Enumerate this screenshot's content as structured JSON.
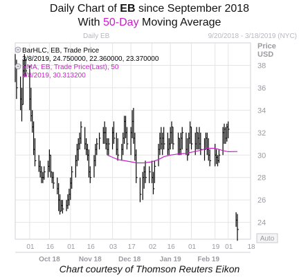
{
  "title": {
    "prefix": "Daily Chart of ",
    "ticker": "EB",
    "suffix": " since September 2018",
    "line2_prefix": "With ",
    "line2_highlight": "50-Day",
    "line2_suffix": " Moving Average"
  },
  "caption": "Chart courtesy of Thomson Reuters Eikon",
  "colors": {
    "price_bars": "#000000",
    "sma": "#c81ec8",
    "grid": "#e4e4e4",
    "axis_text": "#9a9aa2"
  },
  "chart_data": {
    "type": "ohlc_with_line",
    "watermark": "Daily EB",
    "date_range_label": "9/20/2018 - 3/18/2019 (NYC)",
    "ylabel": "Price\nUSD",
    "yticks": [
      24,
      26,
      28,
      30,
      32,
      34,
      36,
      38
    ],
    "ylim": [
      22.5,
      40
    ],
    "auto_label": "Auto",
    "legend": [
      {
        "icon": "zoom-icon",
        "text": "BarHLC, EB, Trade Price"
      },
      {
        "icon": "",
        "text": "3/8/2019, 24.750000, 22.360000, 23.370000"
      },
      {
        "icon": "zoom-icon",
        "text": "SMA, EB, Trade Price(Last),  50"
      },
      {
        "icon": "",
        "text": "3/8/2019, 30.313200"
      }
    ],
    "x_day_ticks": [
      {
        "label": "01",
        "date": "2018-10-01"
      },
      {
        "label": "16",
        "date": "2018-10-16"
      },
      {
        "label": "01",
        "date": "2018-11-01"
      },
      {
        "label": "16",
        "date": "2018-11-16"
      },
      {
        "label": "03",
        "date": "2018-12-03"
      },
      {
        "label": "17",
        "date": "2018-12-17"
      },
      {
        "label": "02",
        "date": "2019-01-02"
      },
      {
        "label": "16",
        "date": "2019-01-16"
      },
      {
        "label": "01",
        "date": "2019-02-01"
      },
      {
        "label": "19",
        "date": "2019-02-19"
      },
      {
        "label": "01",
        "date": "2019-03-01"
      },
      {
        "label": "18",
        "date": "2019-03-18"
      }
    ],
    "x_month_labels": [
      {
        "label": "Oct 18",
        "date": "2018-10-16"
      },
      {
        "label": "Nov 18",
        "date": "2018-11-16"
      },
      {
        "label": "Dec 18",
        "date": "2018-12-16"
      },
      {
        "label": "Jan 19",
        "date": "2019-01-16"
      },
      {
        "label": "Feb 19",
        "date": "2019-02-14"
      }
    ],
    "x_start": "2018-09-20",
    "x_end": "2019-03-18",
    "bars": [
      {
        "date": "2018-09-20",
        "high": 39.0,
        "low": 36.5,
        "close": 38.0
      },
      {
        "date": "2018-09-21",
        "high": 38.5,
        "low": 35.0,
        "close": 36.0
      },
      {
        "date": "2018-09-24",
        "high": 37.0,
        "low": 34.0,
        "close": 35.0
      },
      {
        "date": "2018-09-25",
        "high": 36.0,
        "low": 33.0,
        "close": 34.5
      },
      {
        "date": "2018-09-26",
        "high": 38.5,
        "low": 34.5,
        "close": 37.5
      },
      {
        "date": "2018-09-27",
        "high": 39.0,
        "low": 37.0,
        "close": 38.0
      },
      {
        "date": "2018-09-28",
        "high": 38.5,
        "low": 37.0,
        "close": 37.5
      },
      {
        "date": "2018-10-01",
        "high": 38.0,
        "low": 34.0,
        "close": 35.0
      },
      {
        "date": "2018-10-02",
        "high": 36.0,
        "low": 33.0,
        "close": 33.5
      },
      {
        "date": "2018-10-03",
        "high": 34.0,
        "low": 32.0,
        "close": 32.5
      },
      {
        "date": "2018-10-04",
        "high": 33.0,
        "low": 30.0,
        "close": 30.5
      },
      {
        "date": "2018-10-05",
        "high": 31.5,
        "low": 29.0,
        "close": 29.5
      },
      {
        "date": "2018-10-08",
        "high": 30.0,
        "low": 28.5,
        "close": 29.0
      },
      {
        "date": "2018-10-09",
        "high": 29.5,
        "low": 28.0,
        "close": 28.5
      },
      {
        "date": "2018-10-10",
        "high": 29.0,
        "low": 27.5,
        "close": 28.0
      },
      {
        "date": "2018-10-11",
        "high": 28.5,
        "low": 27.5,
        "close": 28.0
      },
      {
        "date": "2018-10-12",
        "high": 29.0,
        "low": 27.8,
        "close": 28.5
      },
      {
        "date": "2018-10-15",
        "high": 29.5,
        "low": 28.0,
        "close": 29.0
      },
      {
        "date": "2018-10-16",
        "high": 30.5,
        "low": 28.5,
        "close": 30.0
      },
      {
        "date": "2018-10-17",
        "high": 30.0,
        "low": 28.0,
        "close": 28.5
      },
      {
        "date": "2018-10-18",
        "high": 28.5,
        "low": 27.5,
        "close": 28.0
      },
      {
        "date": "2018-10-19",
        "high": 28.5,
        "low": 27.0,
        "close": 27.5
      },
      {
        "date": "2018-10-22",
        "high": 28.0,
        "low": 26.5,
        "close": 27.0
      },
      {
        "date": "2018-10-23",
        "high": 27.5,
        "low": 25.0,
        "close": 26.0
      },
      {
        "date": "2018-10-24",
        "high": 26.5,
        "low": 24.7,
        "close": 25.0
      },
      {
        "date": "2018-10-25",
        "high": 26.0,
        "low": 25.0,
        "close": 25.5
      },
      {
        "date": "2018-10-26",
        "high": 26.0,
        "low": 24.8,
        "close": 25.2
      },
      {
        "date": "2018-10-29",
        "high": 26.0,
        "low": 25.0,
        "close": 25.5
      },
      {
        "date": "2018-10-30",
        "high": 26.5,
        "low": 25.2,
        "close": 26.0
      },
      {
        "date": "2018-10-31",
        "high": 27.0,
        "low": 25.5,
        "close": 26.5
      },
      {
        "date": "2018-11-01",
        "high": 28.0,
        "low": 26.0,
        "close": 27.5
      },
      {
        "date": "2018-11-02",
        "high": 29.0,
        "low": 27.0,
        "close": 28.5
      },
      {
        "date": "2018-11-05",
        "high": 30.0,
        "low": 28.0,
        "close": 29.5
      },
      {
        "date": "2018-11-06",
        "high": 31.0,
        "low": 29.0,
        "close": 30.5
      },
      {
        "date": "2018-11-07",
        "high": 31.5,
        "low": 29.5,
        "close": 31.0
      },
      {
        "date": "2018-11-08",
        "high": 32.0,
        "low": 30.5,
        "close": 31.5
      },
      {
        "date": "2018-11-09",
        "high": 33.0,
        "low": 31.0,
        "close": 32.5
      },
      {
        "date": "2018-11-12",
        "high": 32.5,
        "low": 30.5,
        "close": 31.0
      },
      {
        "date": "2018-11-13",
        "high": 31.5,
        "low": 30.0,
        "close": 30.5
      },
      {
        "date": "2018-11-14",
        "high": 31.0,
        "low": 29.5,
        "close": 30.0
      },
      {
        "date": "2018-11-15",
        "high": 30.5,
        "low": 28.0,
        "close": 28.5
      },
      {
        "date": "2018-11-16",
        "high": 29.0,
        "low": 27.5,
        "close": 28.0
      },
      {
        "date": "2018-11-19",
        "high": 30.0,
        "low": 28.0,
        "close": 29.5
      },
      {
        "date": "2018-11-20",
        "high": 31.0,
        "low": 29.0,
        "close": 30.5
      },
      {
        "date": "2018-11-21",
        "high": 31.5,
        "low": 30.0,
        "close": 31.0
      },
      {
        "date": "2018-11-23",
        "high": 32.0,
        "low": 30.5,
        "close": 31.5
      },
      {
        "date": "2018-11-26",
        "high": 32.5,
        "low": 31.0,
        "close": 32.0
      },
      {
        "date": "2018-11-27",
        "high": 33.0,
        "low": 31.0,
        "close": 32.0
      },
      {
        "date": "2018-11-28",
        "high": 32.5,
        "low": 30.5,
        "close": 31.0
      },
      {
        "date": "2018-11-29",
        "high": 31.5,
        "low": 30.0,
        "close": 30.5
      },
      {
        "date": "2018-11-30",
        "high": 31.5,
        "low": 30.0,
        "close": 31.0
      },
      {
        "date": "2018-12-03",
        "high": 32.5,
        "low": 30.5,
        "close": 32.0
      },
      {
        "date": "2018-12-04",
        "high": 33.0,
        "low": 31.0,
        "close": 31.5
      },
      {
        "date": "2018-12-06",
        "high": 32.0,
        "low": 30.0,
        "close": 30.5
      },
      {
        "date": "2018-12-07",
        "high": 31.5,
        "low": 29.5,
        "close": 30.0
      },
      {
        "date": "2018-12-10",
        "high": 31.0,
        "low": 29.5,
        "close": 30.5
      },
      {
        "date": "2018-12-11",
        "high": 32.0,
        "low": 30.0,
        "close": 31.5
      },
      {
        "date": "2018-12-12",
        "high": 33.5,
        "low": 31.0,
        "close": 33.0
      },
      {
        "date": "2018-12-13",
        "high": 33.5,
        "low": 31.5,
        "close": 32.0
      },
      {
        "date": "2018-12-14",
        "high": 32.5,
        "low": 30.5,
        "close": 31.0
      },
      {
        "date": "2018-12-17",
        "high": 32.5,
        "low": 30.0,
        "close": 32.0
      },
      {
        "date": "2018-12-18",
        "high": 34.0,
        "low": 31.5,
        "close": 33.0
      },
      {
        "date": "2018-12-19",
        "high": 34.2,
        "low": 31.0,
        "close": 31.5
      },
      {
        "date": "2018-12-20",
        "high": 32.0,
        "low": 29.5,
        "close": 30.0
      },
      {
        "date": "2018-12-21",
        "high": 30.5,
        "low": 27.5,
        "close": 28.0
      },
      {
        "date": "2018-12-24",
        "high": 28.0,
        "low": 25.8,
        "close": 26.5
      },
      {
        "date": "2018-12-26",
        "high": 28.5,
        "low": 26.0,
        "close": 28.0
      },
      {
        "date": "2018-12-27",
        "high": 29.0,
        "low": 27.0,
        "close": 28.5
      },
      {
        "date": "2018-12-28",
        "high": 29.5,
        "low": 27.5,
        "close": 28.0
      },
      {
        "date": "2018-12-31",
        "high": 29.0,
        "low": 27.5,
        "close": 28.5
      },
      {
        "date": "2019-01-02",
        "high": 29.5,
        "low": 27.5,
        "close": 28.0
      },
      {
        "date": "2019-01-03",
        "high": 28.5,
        "low": 26.5,
        "close": 27.0
      },
      {
        "date": "2019-01-04",
        "high": 29.5,
        "low": 27.5,
        "close": 29.0
      },
      {
        "date": "2019-01-07",
        "high": 31.0,
        "low": 29.0,
        "close": 30.5
      },
      {
        "date": "2019-01-08",
        "high": 32.0,
        "low": 30.0,
        "close": 31.5
      },
      {
        "date": "2019-01-09",
        "high": 32.5,
        "low": 30.5,
        "close": 31.0
      },
      {
        "date": "2019-01-10",
        "high": 32.0,
        "low": 30.0,
        "close": 31.5
      },
      {
        "date": "2019-01-11",
        "high": 32.5,
        "low": 30.5,
        "close": 31.0
      },
      {
        "date": "2019-01-14",
        "high": 32.0,
        "low": 30.0,
        "close": 30.5
      },
      {
        "date": "2019-01-15",
        "high": 31.5,
        "low": 30.0,
        "close": 31.0
      },
      {
        "date": "2019-01-16",
        "high": 32.5,
        "low": 30.5,
        "close": 32.0
      },
      {
        "date": "2019-01-17",
        "high": 33.0,
        "low": 31.0,
        "close": 32.5
      },
      {
        "date": "2019-01-18",
        "high": 32.5,
        "low": 30.5,
        "close": 31.0
      },
      {
        "date": "2019-01-22",
        "high": 32.0,
        "low": 30.0,
        "close": 31.5
      },
      {
        "date": "2019-01-23",
        "high": 31.5,
        "low": 30.0,
        "close": 30.5
      },
      {
        "date": "2019-01-24",
        "high": 32.0,
        "low": 30.0,
        "close": 31.5
      },
      {
        "date": "2019-01-25",
        "high": 32.5,
        "low": 30.5,
        "close": 32.0
      },
      {
        "date": "2019-01-28",
        "high": 32.0,
        "low": 30.0,
        "close": 30.5
      },
      {
        "date": "2019-01-29",
        "high": 31.5,
        "low": 29.5,
        "close": 30.0
      },
      {
        "date": "2019-01-30",
        "high": 32.0,
        "low": 30.0,
        "close": 31.5
      },
      {
        "date": "2019-01-31",
        "high": 33.0,
        "low": 31.0,
        "close": 32.5
      },
      {
        "date": "2019-02-01",
        "high": 32.5,
        "low": 30.5,
        "close": 31.0
      },
      {
        "date": "2019-02-04",
        "high": 32.0,
        "low": 30.0,
        "close": 31.0
      },
      {
        "date": "2019-02-05",
        "high": 32.5,
        "low": 30.5,
        "close": 32.0
      },
      {
        "date": "2019-02-06",
        "high": 32.0,
        "low": 30.5,
        "close": 31.5
      },
      {
        "date": "2019-02-07",
        "high": 32.5,
        "low": 30.5,
        "close": 31.0
      },
      {
        "date": "2019-02-08",
        "high": 32.0,
        "low": 30.0,
        "close": 30.5
      },
      {
        "date": "2019-02-11",
        "high": 31.5,
        "low": 29.5,
        "close": 30.5
      },
      {
        "date": "2019-02-12",
        "high": 32.0,
        "low": 30.5,
        "close": 31.5
      },
      {
        "date": "2019-02-13",
        "high": 32.0,
        "low": 30.0,
        "close": 30.5
      },
      {
        "date": "2019-02-14",
        "high": 31.5,
        "low": 29.5,
        "close": 30.0
      },
      {
        "date": "2019-02-15",
        "high": 30.5,
        "low": 29.0,
        "close": 29.5
      },
      {
        "date": "2019-02-19",
        "high": 31.0,
        "low": 29.0,
        "close": 30.0
      },
      {
        "date": "2019-02-20",
        "high": 30.5,
        "low": 29.2,
        "close": 29.8
      },
      {
        "date": "2019-02-21",
        "high": 30.0,
        "low": 29.0,
        "close": 29.5
      },
      {
        "date": "2019-02-22",
        "high": 30.5,
        "low": 29.3,
        "close": 30.0
      },
      {
        "date": "2019-02-25",
        "high": 32.5,
        "low": 30.0,
        "close": 32.0
      },
      {
        "date": "2019-02-26",
        "high": 32.8,
        "low": 31.0,
        "close": 32.3
      },
      {
        "date": "2019-02-27",
        "high": 32.5,
        "low": 31.0,
        "close": 31.5
      },
      {
        "date": "2019-02-28",
        "high": 32.8,
        "low": 31.2,
        "close": 32.5
      },
      {
        "date": "2019-03-01",
        "high": 33.0,
        "low": 31.5,
        "close": 32.3
      },
      {
        "date": "2019-03-07",
        "high": 24.9,
        "low": 23.6,
        "close": 24.2
      },
      {
        "date": "2019-03-08",
        "high": 24.75,
        "low": 22.36,
        "close": 23.37
      }
    ],
    "sma50": [
      {
        "date": "2018-11-29",
        "value": 30.0
      },
      {
        "date": "2018-12-03",
        "value": 29.8
      },
      {
        "date": "2018-12-07",
        "value": 29.6
      },
      {
        "date": "2018-12-12",
        "value": 29.5
      },
      {
        "date": "2018-12-17",
        "value": 29.4
      },
      {
        "date": "2018-12-21",
        "value": 29.3
      },
      {
        "date": "2018-12-27",
        "value": 29.3
      },
      {
        "date": "2019-01-02",
        "value": 29.4
      },
      {
        "date": "2019-01-07",
        "value": 29.6
      },
      {
        "date": "2019-01-11",
        "value": 29.85
      },
      {
        "date": "2019-01-16",
        "value": 30.0
      },
      {
        "date": "2019-01-22",
        "value": 30.1
      },
      {
        "date": "2019-01-28",
        "value": 30.15
      },
      {
        "date": "2019-02-01",
        "value": 30.25
      },
      {
        "date": "2019-02-07",
        "value": 30.4
      },
      {
        "date": "2019-02-13",
        "value": 30.6
      },
      {
        "date": "2019-02-19",
        "value": 30.6
      },
      {
        "date": "2019-02-25",
        "value": 30.4
      },
      {
        "date": "2019-03-01",
        "value": 30.3
      },
      {
        "date": "2019-03-08",
        "value": 30.3132
      }
    ]
  }
}
